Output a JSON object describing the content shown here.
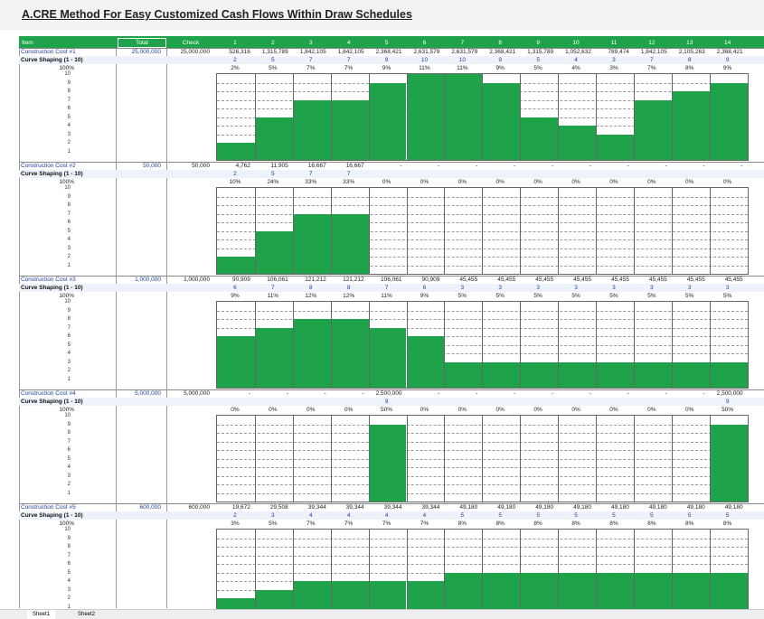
{
  "title": "A.CRE Method For Easy Customized Cash Flows Within Draw Schedules",
  "header": {
    "item": "Item",
    "total": "Total",
    "check": "Check",
    "periods": [
      "1",
      "2",
      "3",
      "4",
      "5",
      "6",
      "7",
      "8",
      "9",
      "10",
      "11",
      "12",
      "13",
      "14"
    ]
  },
  "scale_labels": [
    "10",
    "9",
    "8",
    "7",
    "6",
    "5",
    "4",
    "3",
    "2",
    "1"
  ],
  "pct_label": "100%",
  "shaping_label": "Curve Shaping (1 - 10)",
  "sections": [
    {
      "name": "Construction Cost #1",
      "total": "25,000,000",
      "check": "25,000,000",
      "amounts": [
        "526,316",
        "1,315,789",
        "1,842,105",
        "1,842,105",
        "2,368,421",
        "2,631,579",
        "2,631,579",
        "2,368,421",
        "1,315,789",
        "1,052,632",
        "789,474",
        "1,842,105",
        "2,105,263",
        "2,368,421"
      ],
      "shaping": [
        "2",
        "5",
        "7",
        "7",
        "9",
        "10",
        "10",
        "9",
        "5",
        "4",
        "3",
        "7",
        "8",
        "9"
      ],
      "pcts": [
        "2%",
        "5%",
        "7%",
        "7%",
        "9%",
        "11%",
        "11%",
        "9%",
        "5%",
        "4%",
        "3%",
        "7%",
        "8%",
        "9%"
      ]
    },
    {
      "name": "Construction Cost #2",
      "total": "50,000",
      "check": "50,000",
      "amounts": [
        "4,762",
        "11,905",
        "16,667",
        "16,667",
        "-",
        "-",
        "-",
        "-",
        "-",
        "-",
        "-",
        "-",
        "-",
        "-"
      ],
      "shaping": [
        "2",
        "5",
        "7",
        "7",
        "",
        "",
        "",
        "",
        "",
        "",
        "",
        "",
        "",
        ""
      ],
      "pcts": [
        "10%",
        "24%",
        "33%",
        "33%",
        "0%",
        "0%",
        "0%",
        "0%",
        "0%",
        "0%",
        "0%",
        "0%",
        "0%",
        "0%"
      ]
    },
    {
      "name": "Construction Cost #3",
      "total": "1,000,000",
      "check": "1,000,000",
      "amounts": [
        "90,909",
        "106,061",
        "121,212",
        "121,212",
        "106,061",
        "90,909",
        "45,455",
        "45,455",
        "45,455",
        "45,455",
        "45,455",
        "45,455",
        "45,455",
        "45,455"
      ],
      "shaping": [
        "6",
        "7",
        "8",
        "8",
        "7",
        "6",
        "3",
        "3",
        "3",
        "3",
        "3",
        "3",
        "3",
        "3"
      ],
      "pcts": [
        "9%",
        "11%",
        "12%",
        "12%",
        "11%",
        "9%",
        "5%",
        "5%",
        "5%",
        "5%",
        "5%",
        "5%",
        "5%",
        "5%"
      ]
    },
    {
      "name": "Construction Cost #4",
      "total": "5,000,000",
      "check": "5,000,000",
      "amounts": [
        "-",
        "-",
        "-",
        "-",
        "2,500,000",
        "-",
        "-",
        "-",
        "-",
        "-",
        "-",
        "-",
        "-",
        "2,500,000"
      ],
      "shaping": [
        "",
        "",
        "",
        "",
        "9",
        "",
        "",
        "",
        "",
        "",
        "",
        "",
        "",
        "9"
      ],
      "pcts": [
        "0%",
        "0%",
        "0%",
        "0%",
        "50%",
        "0%",
        "0%",
        "0%",
        "0%",
        "0%",
        "0%",
        "0%",
        "0%",
        "50%"
      ]
    },
    {
      "name": "Construction Cost #5",
      "total": "600,000",
      "check": "600,000",
      "amounts": [
        "19,672",
        "29,508",
        "39,344",
        "39,344",
        "39,344",
        "39,344",
        "49,180",
        "49,180",
        "49,180",
        "49,180",
        "49,180",
        "49,180",
        "49,180",
        "49,180"
      ],
      "shaping": [
        "2",
        "3",
        "4",
        "4",
        "4",
        "4",
        "5",
        "5",
        "5",
        "5",
        "5",
        "5",
        "5",
        "5"
      ],
      "pcts": [
        "3%",
        "5%",
        "7%",
        "7%",
        "7%",
        "7%",
        "8%",
        "8%",
        "8%",
        "8%",
        "8%",
        "8%",
        "8%",
        "8%"
      ]
    }
  ],
  "bars": [
    [
      2,
      5,
      7,
      7,
      9,
      10,
      10,
      9,
      5,
      4,
      3,
      7,
      8,
      9
    ],
    [
      2,
      5,
      7,
      7,
      0,
      0,
      0,
      0,
      0,
      0,
      0,
      0,
      0,
      0
    ],
    [
      6,
      7,
      8,
      8,
      7,
      6,
      3,
      3,
      3,
      3,
      3,
      3,
      3,
      3
    ],
    [
      0,
      0,
      0,
      0,
      9,
      0,
      0,
      0,
      0,
      0,
      0,
      0,
      0,
      9
    ],
    [
      2,
      3,
      4,
      4,
      4,
      4,
      5,
      5,
      5,
      5,
      5,
      5,
      5,
      5
    ]
  ],
  "colors": {
    "green": "#1fa34a",
    "name_blue": "#1f3f9e"
  },
  "tabs": [
    "Sheet1",
    "Sheet2"
  ]
}
